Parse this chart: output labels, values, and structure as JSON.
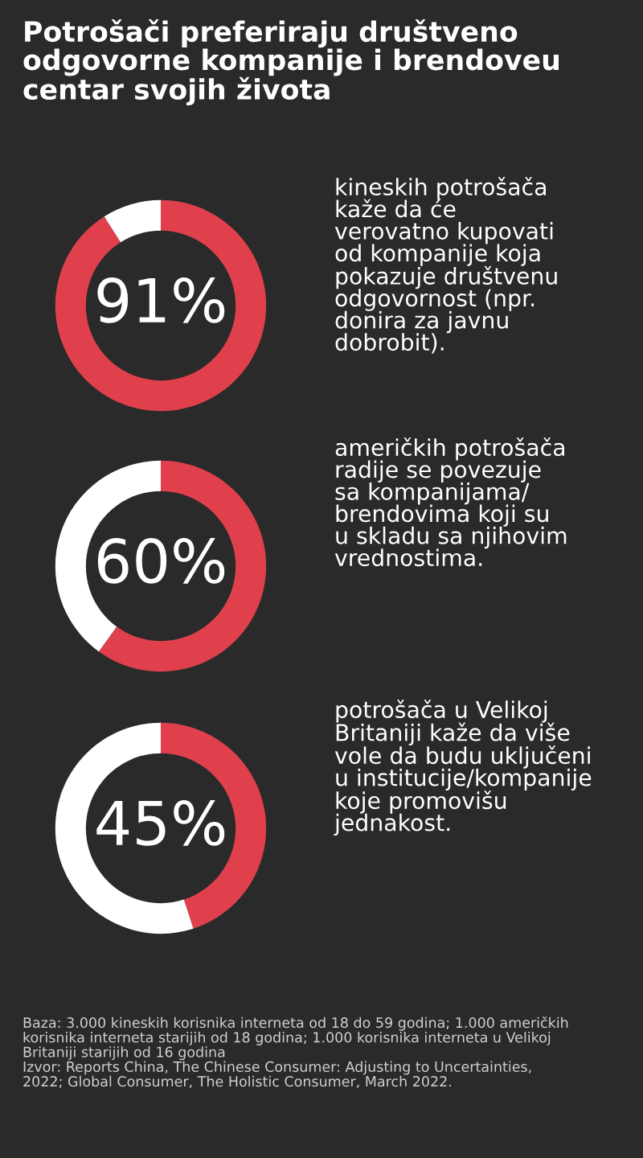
{
  "chart_data": [
    {
      "type": "donut",
      "title": "Potrošači preferiraju društveno\nodgovorne kompanije i brendoveu\ncentar svojih života",
      "categories": [
        null,
        null
      ],
      "values": [
        91,
        9
      ],
      "colors": [
        "#e0404c",
        "#ffffff"
      ],
      "value_labels": [
        "91%",
        null
      ],
      "annotations": [
        "kineskih potrošača\nkaže da će\nverovatno kupovati\nod kompanije koja\npokazuje društvenu\nodgovornost (npr.\ndonira za javnu\ndobrobit)."
      ]
    },
    {
      "type": "donut",
      "categories": [
        null,
        null
      ],
      "values": [
        60,
        40
      ],
      "colors": [
        "#e0404c",
        "#ffffff"
      ],
      "value_labels": [
        "60%",
        null
      ],
      "annotations": [
        "američkih potrošača\nradije se povezuje\nsa kompanijama/\nbrendovima koji su\nu skladu sa njihovim\nvrednostima."
      ]
    },
    {
      "type": "donut",
      "categories": [
        null,
        null
      ],
      "values": [
        45,
        55
      ],
      "colors": [
        "#e0404c",
        "#ffffff"
      ],
      "value_labels": [
        "45%",
        null
      ],
      "annotations": [
        "potrošača u Velikoj\nBritaniji kaže da više\nvole da budu uključeni\nu institucije/kompanije\nkoje promovišu\njednakost.",
        "Baza: 3.000 kineskih korisnika interneta od 18 do 59 godina; 1.000 američkih\nkorisnika interneta starijih od 18 godina; 1.000 korisnika interneta u Velikoj\nBritaniji starijih od 16 godina\nIzvor: Reports China, The Chinese Consumer: Adjusting to Uncertainties,\n2022; Global Consumer, The Holistic Consumer, March 2022."
      ]
    }
  ]
}
